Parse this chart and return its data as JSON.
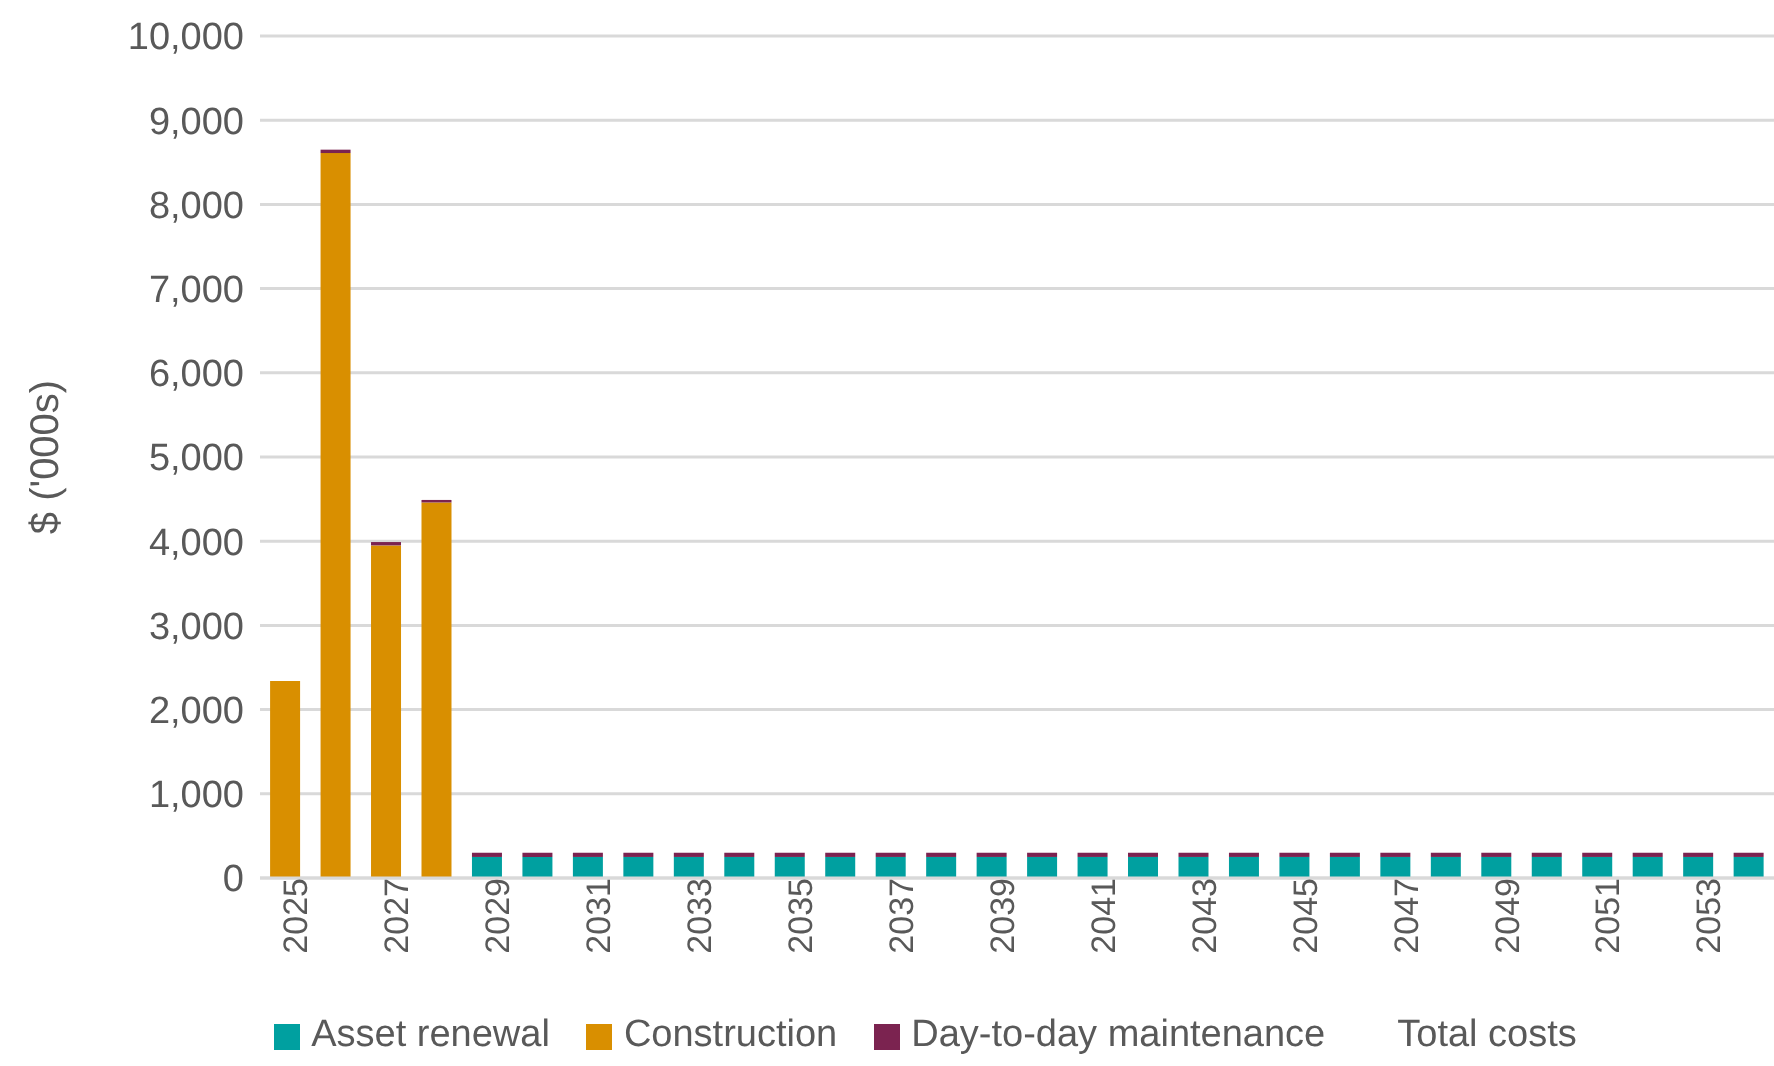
{
  "chart_data": {
    "type": "bar",
    "stacked": true,
    "ylabel": "$ ('000s)",
    "categories": [
      "2025",
      null,
      "2027",
      null,
      "2029",
      null,
      "2031",
      null,
      "2033",
      null,
      "2035",
      null,
      "2037",
      null,
      "2039",
      null,
      "2041",
      null,
      "2043",
      null,
      "2045",
      null,
      "2047",
      null,
      "2049",
      null,
      "2051",
      null,
      "2053",
      null
    ],
    "series": [
      {
        "name": "Construction",
        "color": "#d98f00",
        "values": [
          2340,
          8610,
          3950,
          4460,
          0,
          0,
          0,
          0,
          0,
          0,
          0,
          0,
          0,
          0,
          0,
          0,
          0,
          0,
          0,
          0,
          0,
          0,
          0,
          0,
          0,
          0,
          0,
          0,
          0,
          0
        ]
      },
      {
        "name": "Asset renewal",
        "color": "#00a0a0",
        "values": [
          0,
          0,
          0,
          0,
          250,
          250,
          250,
          250,
          250,
          250,
          250,
          250,
          250,
          250,
          250,
          250,
          250,
          250,
          250,
          250,
          250,
          250,
          250,
          250,
          250,
          250,
          250,
          250,
          250,
          250
        ]
      },
      {
        "name": "Day-to-day maintenance",
        "color": "#7b2350",
        "values": [
          0,
          40,
          40,
          30,
          50,
          50,
          50,
          50,
          50,
          50,
          50,
          50,
          50,
          50,
          50,
          50,
          50,
          50,
          50,
          50,
          50,
          50,
          50,
          50,
          50,
          50,
          50,
          50,
          50,
          50
        ]
      }
    ],
    "ylim": [
      0,
      10000
    ],
    "yticks": [
      0,
      {
        "value": 1000,
        "label": "1,000"
      },
      {
        "value": 2000,
        "label": "2,000"
      },
      {
        "value": 3000,
        "label": "3,000"
      },
      {
        "value": 4000,
        "label": "4,000"
      },
      {
        "value": 5000,
        "label": "5,000"
      },
      {
        "value": 6000,
        "label": "6,000"
      },
      {
        "value": 7000,
        "label": "7,000"
      },
      {
        "value": 8000,
        "label": "8,000"
      },
      {
        "value": 9000,
        "label": "9,000"
      },
      {
        "value": 10000,
        "label": "10,000"
      }
    ],
    "grid": "y",
    "legend": "bottom",
    "annotations": [
      "Total costs"
    ]
  }
}
